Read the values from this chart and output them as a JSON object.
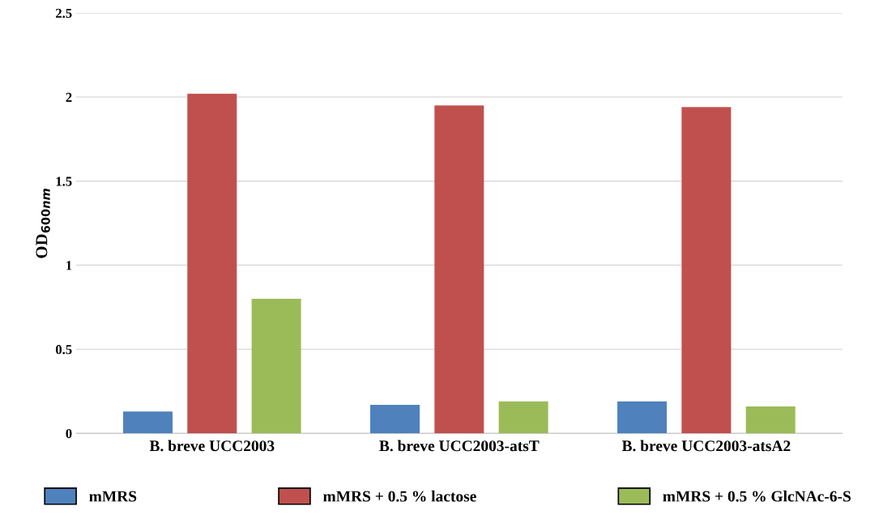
{
  "chart_data": {
    "type": "bar",
    "ylabel": "OD$_{600nm}$",
    "categories": [
      "B. breve UCC2003",
      "B. breve UCC2003-atsT",
      "B. breve UCC2003-atsA2"
    ],
    "series": [
      {
        "name": "mMRS",
        "color": "#4f81bd",
        "values": [
          0.13,
          0.17,
          0.19
        ]
      },
      {
        "name": "mMRS + 0.5 % lactose",
        "color": "#c0504d",
        "values": [
          2.02,
          1.95,
          1.94
        ]
      },
      {
        "name": "mMRS + 0.5 % GlcNAc-6-S",
        "color": "#9bbb59",
        "values": [
          0.8,
          0.19,
          0.16
        ]
      }
    ],
    "ylim": [
      0,
      2.5
    ],
    "yticks": [
      0,
      0.5,
      1,
      1.5,
      2,
      2.5
    ],
    "grid": "y",
    "legend": "bottom"
  }
}
